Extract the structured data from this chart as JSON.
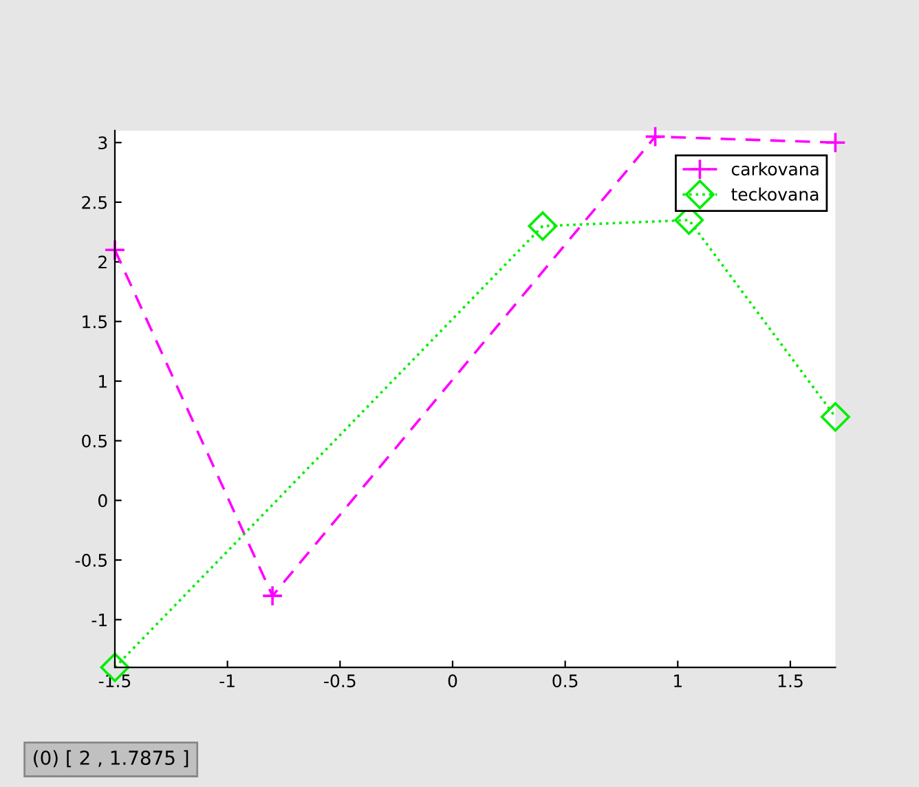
{
  "chart_data": {
    "type": "line",
    "series": [
      {
        "name": "carkovana",
        "color": "#ff00ff",
        "marker": "cross",
        "line_style": "dashed",
        "x": [
          -1.5,
          -0.8,
          0.9,
          1.7
        ],
        "values": [
          2.1,
          -0.8,
          3.05,
          3.0
        ]
      },
      {
        "name": "teckovana",
        "color": "#00ee00",
        "marker": "diamond",
        "line_style": "dotted",
        "x": [
          -1.5,
          0.4,
          1.05,
          1.7
        ],
        "values": [
          -1.4,
          2.3,
          2.35,
          0.7
        ]
      }
    ],
    "xlim": [
      -1.5,
      1.7
    ],
    "ylim": [
      -1.4,
      3.1
    ],
    "xticks": [
      -1.5,
      -1,
      -0.5,
      0,
      0.5,
      1,
      1.5
    ],
    "yticks": [
      -1,
      -0.5,
      0,
      0.5,
      1,
      1.5,
      2,
      2.5,
      3
    ],
    "grid": false,
    "legend": "top right",
    "annotations": [
      "(0) [ 2 , 1.7875 ]"
    ]
  }
}
